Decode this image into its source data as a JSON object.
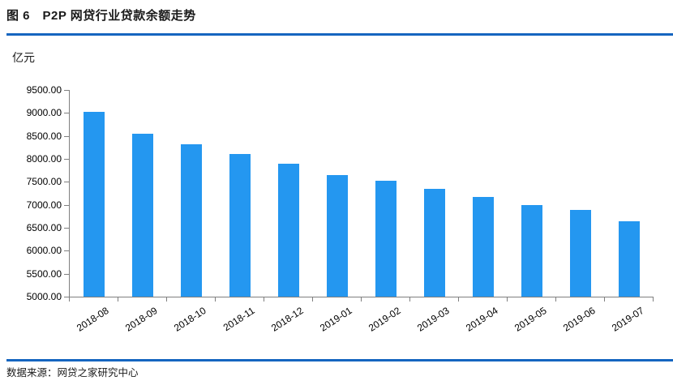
{
  "figure": {
    "title": "图 6　P2P 网贷行业贷款余额走势",
    "unit_label": "亿元",
    "source": "数据来源：网贷之家研究中心"
  },
  "colors": {
    "bar": "#2497f0",
    "rule": "#1565c0",
    "axis": "#7f7f7f",
    "text": "#1a1a1a"
  },
  "chart_data": {
    "type": "bar",
    "title": "P2P 网贷行业贷款余额走势",
    "categories": [
      "2018-08",
      "2018-09",
      "2018-10",
      "2018-11",
      "2018-12",
      "2019-01",
      "2019-02",
      "2019-03",
      "2019-04",
      "2019-05",
      "2019-06",
      "2019-07"
    ],
    "values": [
      9030,
      8540,
      8320,
      8110,
      7890,
      7650,
      7520,
      7340,
      7170,
      7000,
      6890,
      6650
    ],
    "xlabel": "",
    "ylabel": "亿元",
    "ylim": [
      5000,
      9500
    ],
    "ytick_step": 500,
    "ytick_decimals": 2,
    "grid": false,
    "legend": "none",
    "bar_color": "#2497f0"
  }
}
